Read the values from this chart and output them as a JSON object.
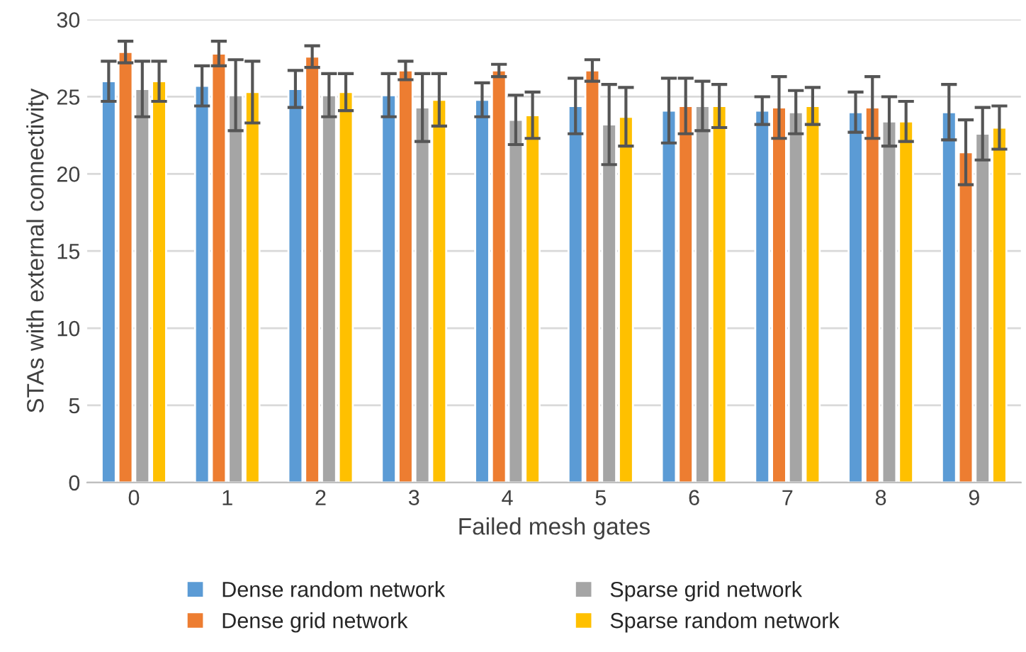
{
  "chart_data": {
    "type": "bar",
    "xlabel": "Failed mesh gates",
    "ylabel": "STAs with external connectivity",
    "categories": [
      "0",
      "1",
      "2",
      "3",
      "4",
      "5",
      "6",
      "7",
      "8",
      "9"
    ],
    "series": [
      {
        "name": "Dense random network",
        "color": "#5b9bd5",
        "values": [
          26.0,
          25.7,
          25.5,
          25.1,
          24.8,
          24.4,
          24.1,
          24.1,
          24.0,
          24.0
        ],
        "errors": [
          1.3,
          1.3,
          1.2,
          1.4,
          1.1,
          1.8,
          2.1,
          0.9,
          1.3,
          1.8
        ]
      },
      {
        "name": "Dense grid network",
        "color": "#ed7d31",
        "values": [
          27.9,
          27.8,
          27.6,
          26.7,
          26.7,
          26.7,
          24.4,
          24.3,
          24.3,
          21.4
        ],
        "errors": [
          0.7,
          0.8,
          0.7,
          0.6,
          0.4,
          0.7,
          1.8,
          2.0,
          2.0,
          2.1
        ]
      },
      {
        "name": "Sparse grid network",
        "color": "#a5a5a5",
        "values": [
          25.5,
          25.1,
          25.1,
          24.3,
          23.5,
          23.2,
          24.4,
          24.0,
          23.4,
          22.6
        ],
        "errors": [
          1.8,
          2.3,
          1.4,
          2.2,
          1.6,
          2.6,
          1.6,
          1.4,
          1.6,
          1.7
        ]
      },
      {
        "name": "Sparse random network",
        "color": "#ffc000",
        "values": [
          26.0,
          25.3,
          25.3,
          24.8,
          23.8,
          23.7,
          24.4,
          24.4,
          23.4,
          23.0
        ],
        "errors": [
          1.3,
          2.0,
          1.2,
          1.7,
          1.5,
          1.9,
          1.4,
          1.2,
          1.3,
          1.4
        ]
      }
    ],
    "ylim": [
      0,
      30
    ],
    "yticks": [
      0,
      5,
      10,
      15,
      20,
      25,
      30
    ],
    "grid": "y",
    "legend": "bottom"
  }
}
